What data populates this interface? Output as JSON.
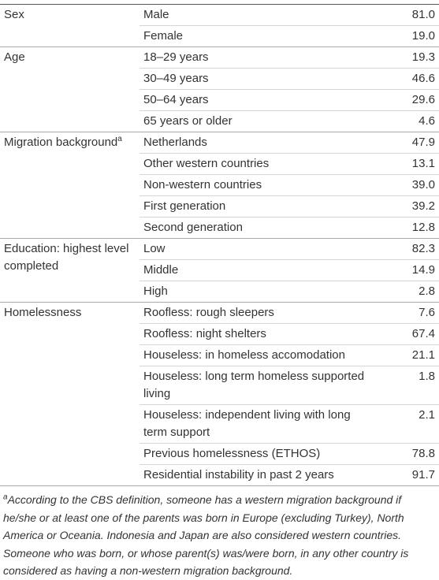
{
  "table": {
    "groups": [
      {
        "label": "Sex",
        "rows": [
          {
            "label": "Male",
            "value": "81.0"
          },
          {
            "label": "Female",
            "value": "19.0"
          }
        ]
      },
      {
        "label": "Age",
        "rows": [
          {
            "label": "18–29 years",
            "value": "19.3"
          },
          {
            "label": "30–49 years",
            "value": "46.6"
          },
          {
            "label": "50–64 years",
            "value": "29.6"
          },
          {
            "label": "65 years or older",
            "value": "4.6"
          }
        ]
      },
      {
        "label": "Migration background",
        "label_sup": "a",
        "rows": [
          {
            "label": "Netherlands",
            "value": "47.9"
          },
          {
            "label": "Other western countries",
            "value": "13.1"
          },
          {
            "label": "Non-western countries",
            "value": "39.0"
          },
          {
            "label": "First generation",
            "value": "39.2"
          },
          {
            "label": "Second generation",
            "value": "12.8"
          }
        ]
      },
      {
        "label": "Education: highest level completed",
        "rows": [
          {
            "label": "Low",
            "value": "82.3"
          },
          {
            "label": "Middle",
            "value": "14.9"
          },
          {
            "label": "High",
            "value": "2.8"
          }
        ]
      },
      {
        "label": "Homelessness",
        "rows": [
          {
            "label": "Roofless: rough sleepers",
            "value": "7.6"
          },
          {
            "label": "Roofless: night shelters",
            "value": "67.4"
          },
          {
            "label": "Houseless: in homeless accomodation",
            "value": "21.1"
          },
          {
            "label": "Houseless: long term homeless supported living",
            "value": "1.8"
          },
          {
            "label": "Houseless: independent living with long term support",
            "value": "2.1"
          },
          {
            "label": "Previous homelessness (ETHOS)",
            "value": "78.8"
          },
          {
            "label": "Residential instability in past 2 years",
            "value": "91.7"
          }
        ]
      }
    ]
  },
  "footnote": {
    "marker": "a",
    "text": "According to the CBS definition, someone has a western migration background if he/she or at least one of the parents was born in Europe (excluding Turkey), North America or Oceania. Indonesia and Japan are also considered western countries. Someone who was born, or whose parent(s) was/were born, in any other country is considered as having a non-western migration background."
  }
}
